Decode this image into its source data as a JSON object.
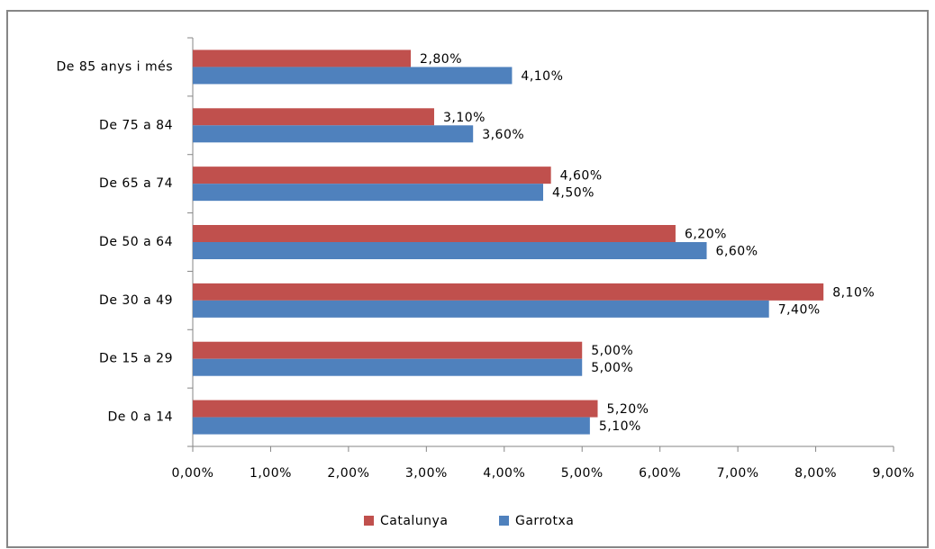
{
  "chart_data": {
    "type": "bar",
    "orientation": "horizontal",
    "categories": [
      "De 85 anys i més",
      "De 75 a 84",
      "De 65 a 74",
      "De 50 a 64",
      "De 30 a 49",
      "De 15 a 29",
      "De 0 a 14"
    ],
    "series": [
      {
        "name": "Catalunya",
        "color": "#c0504d",
        "values": [
          2.8,
          3.1,
          4.6,
          6.2,
          8.1,
          5.0,
          5.2
        ],
        "value_labels": [
          "2,80%",
          "3,10%",
          "4,60%",
          "6,20%",
          "8,10%",
          "5,00%",
          "5,20%"
        ]
      },
      {
        "name": "Garrotxa",
        "color": "#4f81bd",
        "values": [
          4.1,
          3.6,
          4.5,
          6.6,
          7.4,
          5.0,
          5.1
        ],
        "value_labels": [
          "4,10%",
          "3,60%",
          "4,50%",
          "6,60%",
          "7,40%",
          "5,00%",
          "5,10%"
        ]
      }
    ],
    "xlim": [
      0,
      9
    ],
    "xticks": [
      {
        "value": 0,
        "label": "0,00%"
      },
      {
        "value": 1,
        "label": "1,00%"
      },
      {
        "value": 2,
        "label": "2,00%"
      },
      {
        "value": 3,
        "label": "3,00%"
      },
      {
        "value": 4,
        "label": "4,00%"
      },
      {
        "value": 5,
        "label": "5,00%"
      },
      {
        "value": 6,
        "label": "6,00%"
      },
      {
        "value": 7,
        "label": "7,00%"
      },
      {
        "value": 8,
        "label": "8,00%"
      },
      {
        "value": 9,
        "label": "9,00%"
      }
    ],
    "grid": false,
    "legend": "bottom"
  }
}
